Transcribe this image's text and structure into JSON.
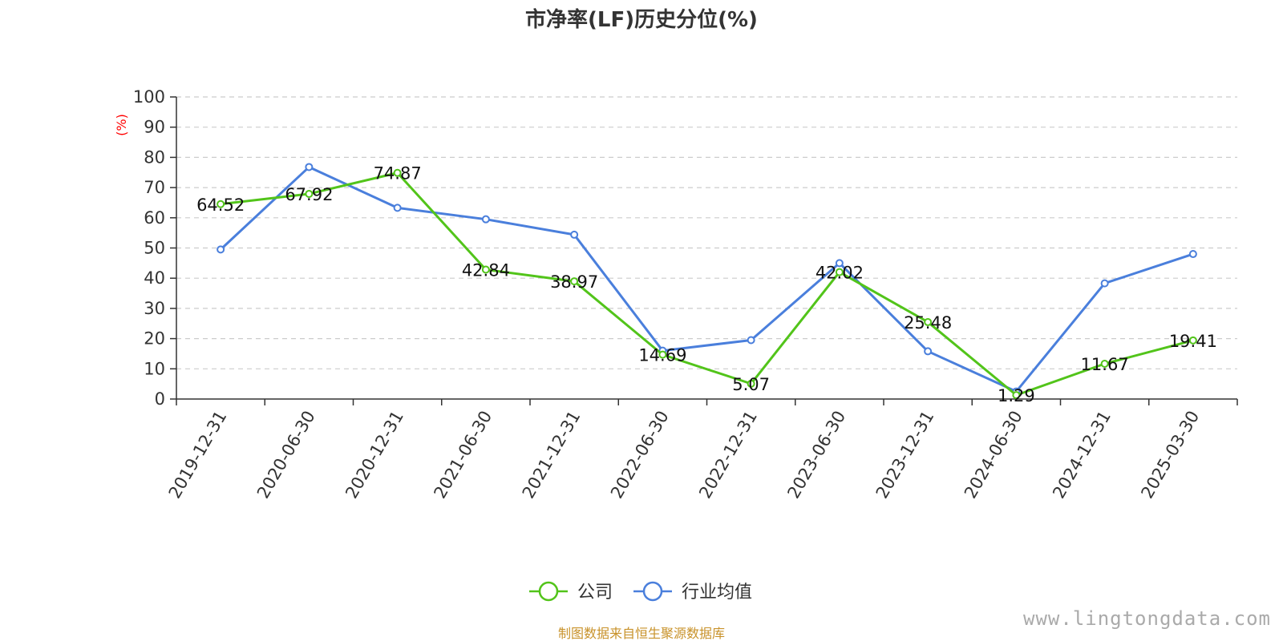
{
  "chart_data": {
    "type": "line",
    "title": "市净率(LF)历史分位(%)",
    "ylabel": "(%)",
    "xlabel": "",
    "ylim": [
      0,
      100
    ],
    "yticks": [
      0,
      10,
      20,
      30,
      40,
      50,
      60,
      70,
      80,
      90,
      100
    ],
    "grid": true,
    "legend_position": "bottom-center",
    "categories": [
      "2019-12-31",
      "2020-06-30",
      "2020-12-31",
      "2021-06-30",
      "2021-12-31",
      "2022-06-30",
      "2022-12-31",
      "2023-06-30",
      "2023-12-31",
      "2024-06-30",
      "2024-12-31",
      "2025-03-30"
    ],
    "series": [
      {
        "name": "公司",
        "color": "#52c41a",
        "values": [
          64.52,
          67.92,
          74.87,
          42.84,
          38.97,
          14.69,
          5.07,
          42.02,
          25.48,
          1.29,
          11.67,
          19.41
        ],
        "labels": [
          "64.52",
          "67.92",
          "74.87",
          "42.84",
          "38.97",
          "14.69",
          "5.07",
          "42.02",
          "25.48",
          "1.29",
          "11.67",
          "19.41"
        ]
      },
      {
        "name": "行业均值",
        "color": "#4a7fdc",
        "values": [
          49.5,
          76.8,
          63.3,
          59.5,
          54.4,
          16.0,
          19.5,
          45.0,
          15.8,
          2.5,
          38.3,
          48.0
        ]
      }
    ]
  },
  "footer": {
    "source": "制图数据来自恒生聚源数据库",
    "watermark": "www.lingtongdata.com"
  }
}
